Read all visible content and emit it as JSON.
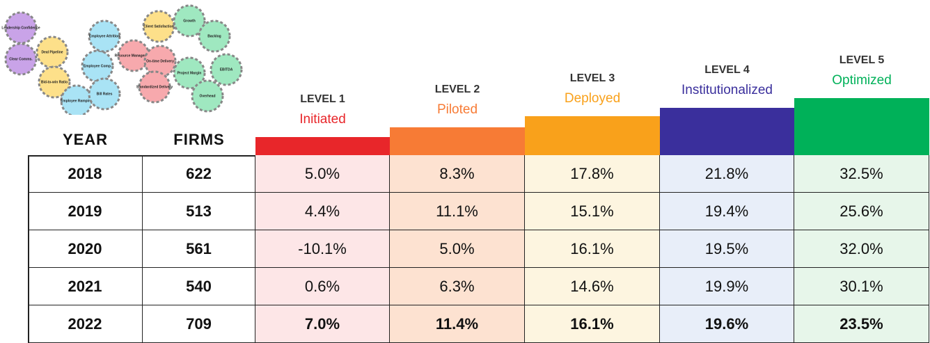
{
  "gears": [
    "Leadership Confidence",
    "Clear Comms.",
    "Deal Pipeline",
    "Bid-to-win Ratio",
    "Employee Ramping",
    "Employee Comp.",
    "Employee Attrition",
    "Bill Rates",
    "Client Satisfaction",
    "Resource Management",
    "On-time Delivery",
    "Standardized Delivery",
    "Growth",
    "Backlog",
    "Project Margin",
    "EBITDA",
    "Overhead"
  ],
  "table": {
    "headers": [
      "YEAR",
      "FIRMS"
    ],
    "levels": [
      {
        "level": "LEVEL 1",
        "name": "Initiated",
        "color": "#e8262a",
        "tint": "#fde6e7"
      },
      {
        "level": "LEVEL 2",
        "name": "Piloted",
        "color": "#f77b35",
        "tint": "#fde2d1"
      },
      {
        "level": "LEVEL 3",
        "name": "Deployed",
        "color": "#f9a11b",
        "tint": "#fdf5e0"
      },
      {
        "level": "LEVEL 4",
        "name": "Institutionalized",
        "color": "#3a2f9c",
        "tint": "#e8eef9"
      },
      {
        "level": "LEVEL 5",
        "name": "Optimized",
        "color": "#00b159",
        "tint": "#e7f6ea"
      }
    ],
    "rows": [
      [
        "2018",
        "622",
        "5.0%",
        "8.3%",
        "17.8%",
        "21.8%",
        "32.5%"
      ],
      [
        "2019",
        "513",
        "4.4%",
        "11.1%",
        "15.1%",
        "19.4%",
        "25.6%"
      ],
      [
        "2020",
        "561",
        "-10.1%",
        "5.0%",
        "16.1%",
        "19.5%",
        "32.0%"
      ],
      [
        "2021",
        "540",
        "0.6%",
        "6.3%",
        "14.6%",
        "19.9%",
        "30.1%"
      ],
      [
        "2022",
        "709",
        "7.0%",
        "11.4%",
        "16.1%",
        "19.6%",
        "23.5%"
      ]
    ]
  }
}
